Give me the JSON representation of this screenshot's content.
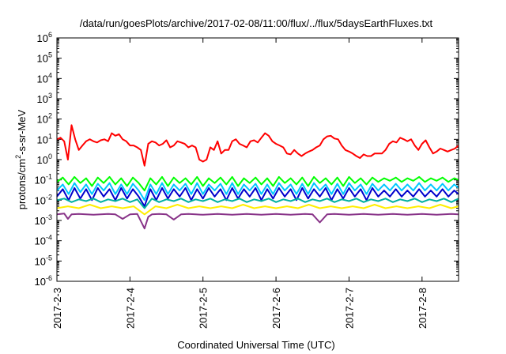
{
  "chart_data": {
    "type": "line",
    "title": "/data/run/goesPlots/archive/2017-02-08/11:00/flux/../flux/5daysEarthFluxes.txt",
    "xlabel": "Coordinated Universal Time (UTC)",
    "ylabel": {
      "main": "protons/cm",
      "sup": "2",
      "tail": "-s-sr-MeV"
    },
    "yscale": "log",
    "ylim": [
      1e-06,
      1000000.0
    ],
    "xlim": [
      0,
      5.5
    ],
    "x_unit": "days since 2017-02-03 00:00 UTC",
    "grid": false,
    "y_ticks": [
      {
        "value": -6,
        "base": "10",
        "exp": "-6"
      },
      {
        "value": -5,
        "base": "10",
        "exp": "-5"
      },
      {
        "value": -4,
        "base": "10",
        "exp": "-4"
      },
      {
        "value": -3,
        "base": "10",
        "exp": "-3"
      },
      {
        "value": -2,
        "base": "10",
        "exp": "-2"
      },
      {
        "value": -1,
        "base": "10",
        "exp": "-1"
      },
      {
        "value": 0,
        "base": "10",
        "exp": "0"
      },
      {
        "value": 1,
        "base": "10",
        "exp": "1"
      },
      {
        "value": 2,
        "base": "10",
        "exp": "2"
      },
      {
        "value": 3,
        "base": "10",
        "exp": "3"
      },
      {
        "value": 4,
        "base": "10",
        "exp": "4"
      },
      {
        "value": 5,
        "base": "10",
        "exp": "5"
      },
      {
        "value": 6,
        "base": "10",
        "exp": "6"
      }
    ],
    "x_ticks": [
      {
        "value": 0,
        "label": "2017-2-3"
      },
      {
        "value": 1,
        "label": "2017-2-4"
      },
      {
        "value": 2,
        "label": "2017-2-5"
      },
      {
        "value": 3,
        "label": "2017-2-6"
      },
      {
        "value": 4,
        "label": "2017-2-7"
      },
      {
        "value": 5,
        "label": "2017-2-8"
      }
    ],
    "series": [
      {
        "color": "#ff0000",
        "x": [
          0.0,
          0.05,
          0.1,
          0.15,
          0.2,
          0.25,
          0.3,
          0.35,
          0.4,
          0.45,
          0.5,
          0.55,
          0.6,
          0.65,
          0.7,
          0.75,
          0.8,
          0.85,
          0.9,
          0.95,
          1.0,
          1.05,
          1.1,
          1.15,
          1.2,
          1.25,
          1.3,
          1.35,
          1.4,
          1.45,
          1.5,
          1.55,
          1.6,
          1.65,
          1.7,
          1.75,
          1.8,
          1.85,
          1.9,
          1.95,
          2.0,
          2.05,
          2.1,
          2.15,
          2.2,
          2.25,
          2.3,
          2.35,
          2.4,
          2.45,
          2.5,
          2.55,
          2.6,
          2.65,
          2.7,
          2.75,
          2.8,
          2.85,
          2.9,
          2.95,
          3.0,
          3.05,
          3.1,
          3.15,
          3.2,
          3.25,
          3.3,
          3.35,
          3.4,
          3.45,
          3.5,
          3.55,
          3.6,
          3.65,
          3.7,
          3.75,
          3.8,
          3.85,
          3.9,
          3.95,
          4.0,
          4.05,
          4.1,
          4.15,
          4.2,
          4.25,
          4.3,
          4.35,
          4.4,
          4.45,
          4.5,
          4.55,
          4.6,
          4.65,
          4.7,
          4.75,
          4.8,
          4.85,
          4.9,
          4.95,
          5.0,
          5.05,
          5.1,
          5.15,
          5.2,
          5.25,
          5.3,
          5.35,
          5.4,
          5.45,
          5.5
        ],
        "values": [
          10,
          12,
          8,
          1,
          50,
          10,
          3,
          5,
          8,
          10,
          8,
          7,
          9,
          10,
          8,
          20,
          15,
          18,
          10,
          8,
          5,
          5,
          4,
          3,
          0.5,
          6,
          8,
          7,
          5,
          6,
          9,
          4,
          5,
          8,
          7,
          6,
          4,
          5,
          4,
          1,
          0.8,
          1,
          4,
          3,
          8,
          2,
          3,
          3,
          8,
          10,
          6,
          5,
          4,
          8,
          9,
          7,
          12,
          20,
          15,
          8,
          6,
          5,
          4,
          2,
          1.8,
          3,
          2,
          1.5,
          2,
          2.5,
          3,
          4,
          5,
          10,
          14,
          15,
          11,
          10,
          5,
          3,
          2.5,
          2,
          1.5,
          1.2,
          1.8,
          1.5,
          1.5,
          2,
          2,
          2,
          3,
          6,
          8,
          7,
          12,
          10,
          8,
          10,
          5,
          3,
          6,
          9,
          4,
          2,
          2.5,
          3.5,
          3,
          2.5,
          3,
          3.5,
          5
        ]
      },
      {
        "color": "#00ff00",
        "x": [
          0.0,
          0.08,
          0.16,
          0.24,
          0.32,
          0.4,
          0.48,
          0.56,
          0.64,
          0.72,
          0.8,
          0.88,
          0.96,
          1.04,
          1.12,
          1.2,
          1.28,
          1.36,
          1.44,
          1.52,
          1.6,
          1.68,
          1.76,
          1.84,
          1.92,
          2.0,
          2.08,
          2.16,
          2.24,
          2.32,
          2.4,
          2.48,
          2.56,
          2.64,
          2.72,
          2.8,
          2.88,
          2.96,
          3.04,
          3.12,
          3.2,
          3.28,
          3.36,
          3.44,
          3.52,
          3.6,
          3.68,
          3.76,
          3.84,
          3.92,
          4.0,
          4.08,
          4.16,
          4.24,
          4.32,
          4.4,
          4.48,
          4.56,
          4.64,
          4.72,
          4.8,
          4.88,
          4.96,
          5.04,
          5.12,
          5.2,
          5.28,
          5.36,
          5.44,
          5.5
        ],
        "values": [
          0.08,
          0.13,
          0.06,
          0.14,
          0.07,
          0.12,
          0.05,
          0.13,
          0.07,
          0.14,
          0.06,
          0.12,
          0.05,
          0.13,
          0.07,
          0.03,
          0.12,
          0.06,
          0.14,
          0.05,
          0.13,
          0.07,
          0.12,
          0.06,
          0.14,
          0.05,
          0.12,
          0.07,
          0.13,
          0.06,
          0.14,
          0.05,
          0.12,
          0.07,
          0.13,
          0.06,
          0.12,
          0.05,
          0.14,
          0.07,
          0.12,
          0.06,
          0.13,
          0.05,
          0.14,
          0.07,
          0.12,
          0.06,
          0.13,
          0.05,
          0.14,
          0.07,
          0.12,
          0.06,
          0.13,
          0.08,
          0.12,
          0.09,
          0.13,
          0.08,
          0.12,
          0.09,
          0.14,
          0.08,
          0.12,
          0.09,
          0.13,
          0.08,
          0.12,
          0.1
        ]
      },
      {
        "color": "#00c8ff",
        "x": [
          0.0,
          0.08,
          0.16,
          0.24,
          0.32,
          0.4,
          0.48,
          0.56,
          0.64,
          0.72,
          0.8,
          0.88,
          0.96,
          1.04,
          1.12,
          1.2,
          1.28,
          1.36,
          1.44,
          1.52,
          1.6,
          1.68,
          1.76,
          1.84,
          1.92,
          2.0,
          2.08,
          2.16,
          2.24,
          2.32,
          2.4,
          2.48,
          2.56,
          2.64,
          2.72,
          2.8,
          2.88,
          2.96,
          3.04,
          3.12,
          3.2,
          3.28,
          3.36,
          3.44,
          3.52,
          3.6,
          3.68,
          3.76,
          3.84,
          3.92,
          4.0,
          4.08,
          4.16,
          4.24,
          4.32,
          4.4,
          4.48,
          4.56,
          4.64,
          4.72,
          4.8,
          4.88,
          4.96,
          5.04,
          5.12,
          5.2,
          5.28,
          5.36,
          5.44,
          5.5
        ],
        "values": [
          0.03,
          0.06,
          0.02,
          0.07,
          0.025,
          0.06,
          0.02,
          0.065,
          0.03,
          0.07,
          0.02,
          0.06,
          0.02,
          0.065,
          0.03,
          0.01,
          0.06,
          0.02,
          0.07,
          0.02,
          0.06,
          0.03,
          0.065,
          0.02,
          0.07,
          0.02,
          0.06,
          0.03,
          0.065,
          0.02,
          0.07,
          0.02,
          0.06,
          0.03,
          0.065,
          0.02,
          0.06,
          0.02,
          0.07,
          0.03,
          0.06,
          0.02,
          0.065,
          0.02,
          0.07,
          0.03,
          0.06,
          0.02,
          0.065,
          0.02,
          0.07,
          0.03,
          0.06,
          0.02,
          0.065,
          0.03,
          0.06,
          0.03,
          0.065,
          0.03,
          0.06,
          0.03,
          0.07,
          0.03,
          0.06,
          0.03,
          0.065,
          0.03,
          0.06,
          0.04
        ]
      },
      {
        "color": "#0000cc",
        "x": [
          0.0,
          0.08,
          0.16,
          0.24,
          0.32,
          0.4,
          0.48,
          0.56,
          0.64,
          0.72,
          0.8,
          0.88,
          0.96,
          1.04,
          1.12,
          1.2,
          1.28,
          1.36,
          1.44,
          1.52,
          1.6,
          1.68,
          1.76,
          1.84,
          1.92,
          2.0,
          2.08,
          2.16,
          2.24,
          2.32,
          2.4,
          2.48,
          2.56,
          2.64,
          2.72,
          2.8,
          2.88,
          2.96,
          3.04,
          3.12,
          3.2,
          3.28,
          3.36,
          3.44,
          3.52,
          3.6,
          3.68,
          3.76,
          3.84,
          3.92,
          4.0,
          4.08,
          4.16,
          4.24,
          4.32,
          4.4,
          4.48,
          4.56,
          4.64,
          4.72,
          4.8,
          4.88,
          4.96,
          5.04,
          5.12,
          5.2,
          5.28,
          5.36,
          5.44,
          5.5
        ],
        "values": [
          0.015,
          0.035,
          0.01,
          0.04,
          0.012,
          0.035,
          0.01,
          0.04,
          0.015,
          0.035,
          0.01,
          0.04,
          0.012,
          0.035,
          0.015,
          0.005,
          0.035,
          0.01,
          0.04,
          0.012,
          0.035,
          0.015,
          0.04,
          0.01,
          0.035,
          0.012,
          0.04,
          0.015,
          0.035,
          0.01,
          0.04,
          0.012,
          0.035,
          0.015,
          0.04,
          0.01,
          0.035,
          0.012,
          0.04,
          0.015,
          0.035,
          0.01,
          0.04,
          0.012,
          0.035,
          0.015,
          0.04,
          0.01,
          0.035,
          0.012,
          0.04,
          0.015,
          0.035,
          0.01,
          0.04,
          0.015,
          0.03,
          0.015,
          0.035,
          0.015,
          0.03,
          0.015,
          0.035,
          0.015,
          0.03,
          0.015,
          0.035,
          0.015,
          0.03,
          0.02
        ]
      },
      {
        "color": "#00b0a0",
        "x": [
          0.0,
          0.1,
          0.2,
          0.3,
          0.4,
          0.5,
          0.6,
          0.7,
          0.8,
          0.9,
          1.0,
          1.1,
          1.2,
          1.3,
          1.4,
          1.5,
          1.6,
          1.7,
          1.8,
          1.9,
          2.0,
          2.1,
          2.2,
          2.3,
          2.4,
          2.5,
          2.6,
          2.7,
          2.8,
          2.9,
          3.0,
          3.1,
          3.2,
          3.3,
          3.4,
          3.5,
          3.6,
          3.7,
          3.8,
          3.9,
          4.0,
          4.1,
          4.2,
          4.3,
          4.4,
          4.5,
          4.6,
          4.7,
          4.8,
          4.9,
          5.0,
          5.1,
          5.2,
          5.3,
          5.4,
          5.5
        ],
        "values": [
          0.01,
          0.012,
          0.008,
          0.011,
          0.009,
          0.012,
          0.008,
          0.011,
          0.009,
          0.012,
          0.008,
          0.011,
          0.004,
          0.012,
          0.008,
          0.011,
          0.009,
          0.012,
          0.008,
          0.011,
          0.009,
          0.012,
          0.008,
          0.011,
          0.009,
          0.012,
          0.008,
          0.011,
          0.009,
          0.012,
          0.008,
          0.011,
          0.009,
          0.012,
          0.008,
          0.011,
          0.009,
          0.012,
          0.008,
          0.011,
          0.009,
          0.012,
          0.008,
          0.011,
          0.009,
          0.012,
          0.008,
          0.011,
          0.009,
          0.012,
          0.008,
          0.011,
          0.009,
          0.012,
          0.008,
          0.012
        ]
      },
      {
        "color": "#ffee00",
        "x": [
          0.0,
          0.15,
          0.3,
          0.45,
          0.6,
          0.75,
          0.9,
          1.05,
          1.2,
          1.35,
          1.5,
          1.65,
          1.8,
          1.95,
          2.1,
          2.25,
          2.4,
          2.55,
          2.7,
          2.85,
          3.0,
          3.15,
          3.3,
          3.45,
          3.6,
          3.75,
          3.9,
          4.05,
          4.2,
          4.35,
          4.5,
          4.65,
          4.8,
          4.95,
          5.1,
          5.25,
          5.4,
          5.5
        ],
        "values": [
          0.004,
          0.005,
          0.004,
          0.006,
          0.004,
          0.005,
          0.004,
          0.005,
          0.002,
          0.005,
          0.004,
          0.006,
          0.004,
          0.005,
          0.004,
          0.005,
          0.004,
          0.006,
          0.004,
          0.005,
          0.004,
          0.005,
          0.004,
          0.006,
          0.004,
          0.005,
          0.004,
          0.005,
          0.004,
          0.006,
          0.004,
          0.005,
          0.004,
          0.005,
          0.004,
          0.006,
          0.004,
          0.005
        ]
      },
      {
        "color": "#883388",
        "x": [
          0.0,
          0.1,
          0.15,
          0.2,
          0.3,
          0.4,
          0.5,
          0.6,
          0.7,
          0.8,
          0.9,
          1.0,
          1.1,
          1.2,
          1.25,
          1.3,
          1.4,
          1.5,
          1.6,
          1.7,
          1.8,
          1.9,
          2.0,
          2.1,
          2.2,
          2.3,
          2.4,
          2.5,
          2.6,
          2.7,
          2.8,
          2.9,
          3.0,
          3.1,
          3.2,
          3.3,
          3.4,
          3.5,
          3.6,
          3.7,
          3.8,
          3.9,
          4.0,
          4.1,
          4.2,
          4.3,
          4.4,
          4.5,
          4.6,
          4.7,
          4.8,
          4.9,
          5.0,
          5.1,
          5.2,
          5.3,
          5.4,
          5.5
        ],
        "values": [
          0.002,
          0.0022,
          0.0012,
          0.002,
          0.0021,
          0.002,
          0.0019,
          0.002,
          0.0021,
          0.002,
          0.0012,
          0.002,
          0.0021,
          0.0004,
          0.0015,
          0.002,
          0.0021,
          0.002,
          0.0011,
          0.002,
          0.0021,
          0.002,
          0.0019,
          0.002,
          0.0021,
          0.002,
          0.0019,
          0.002,
          0.0021,
          0.002,
          0.0019,
          0.002,
          0.0021,
          0.002,
          0.0019,
          0.002,
          0.0021,
          0.002,
          0.0008,
          0.002,
          0.0021,
          0.002,
          0.0019,
          0.002,
          0.0021,
          0.002,
          0.0019,
          0.002,
          0.0021,
          0.002,
          0.0019,
          0.002,
          0.0021,
          0.002,
          0.0019,
          0.002,
          0.0021,
          0.002
        ]
      }
    ]
  }
}
